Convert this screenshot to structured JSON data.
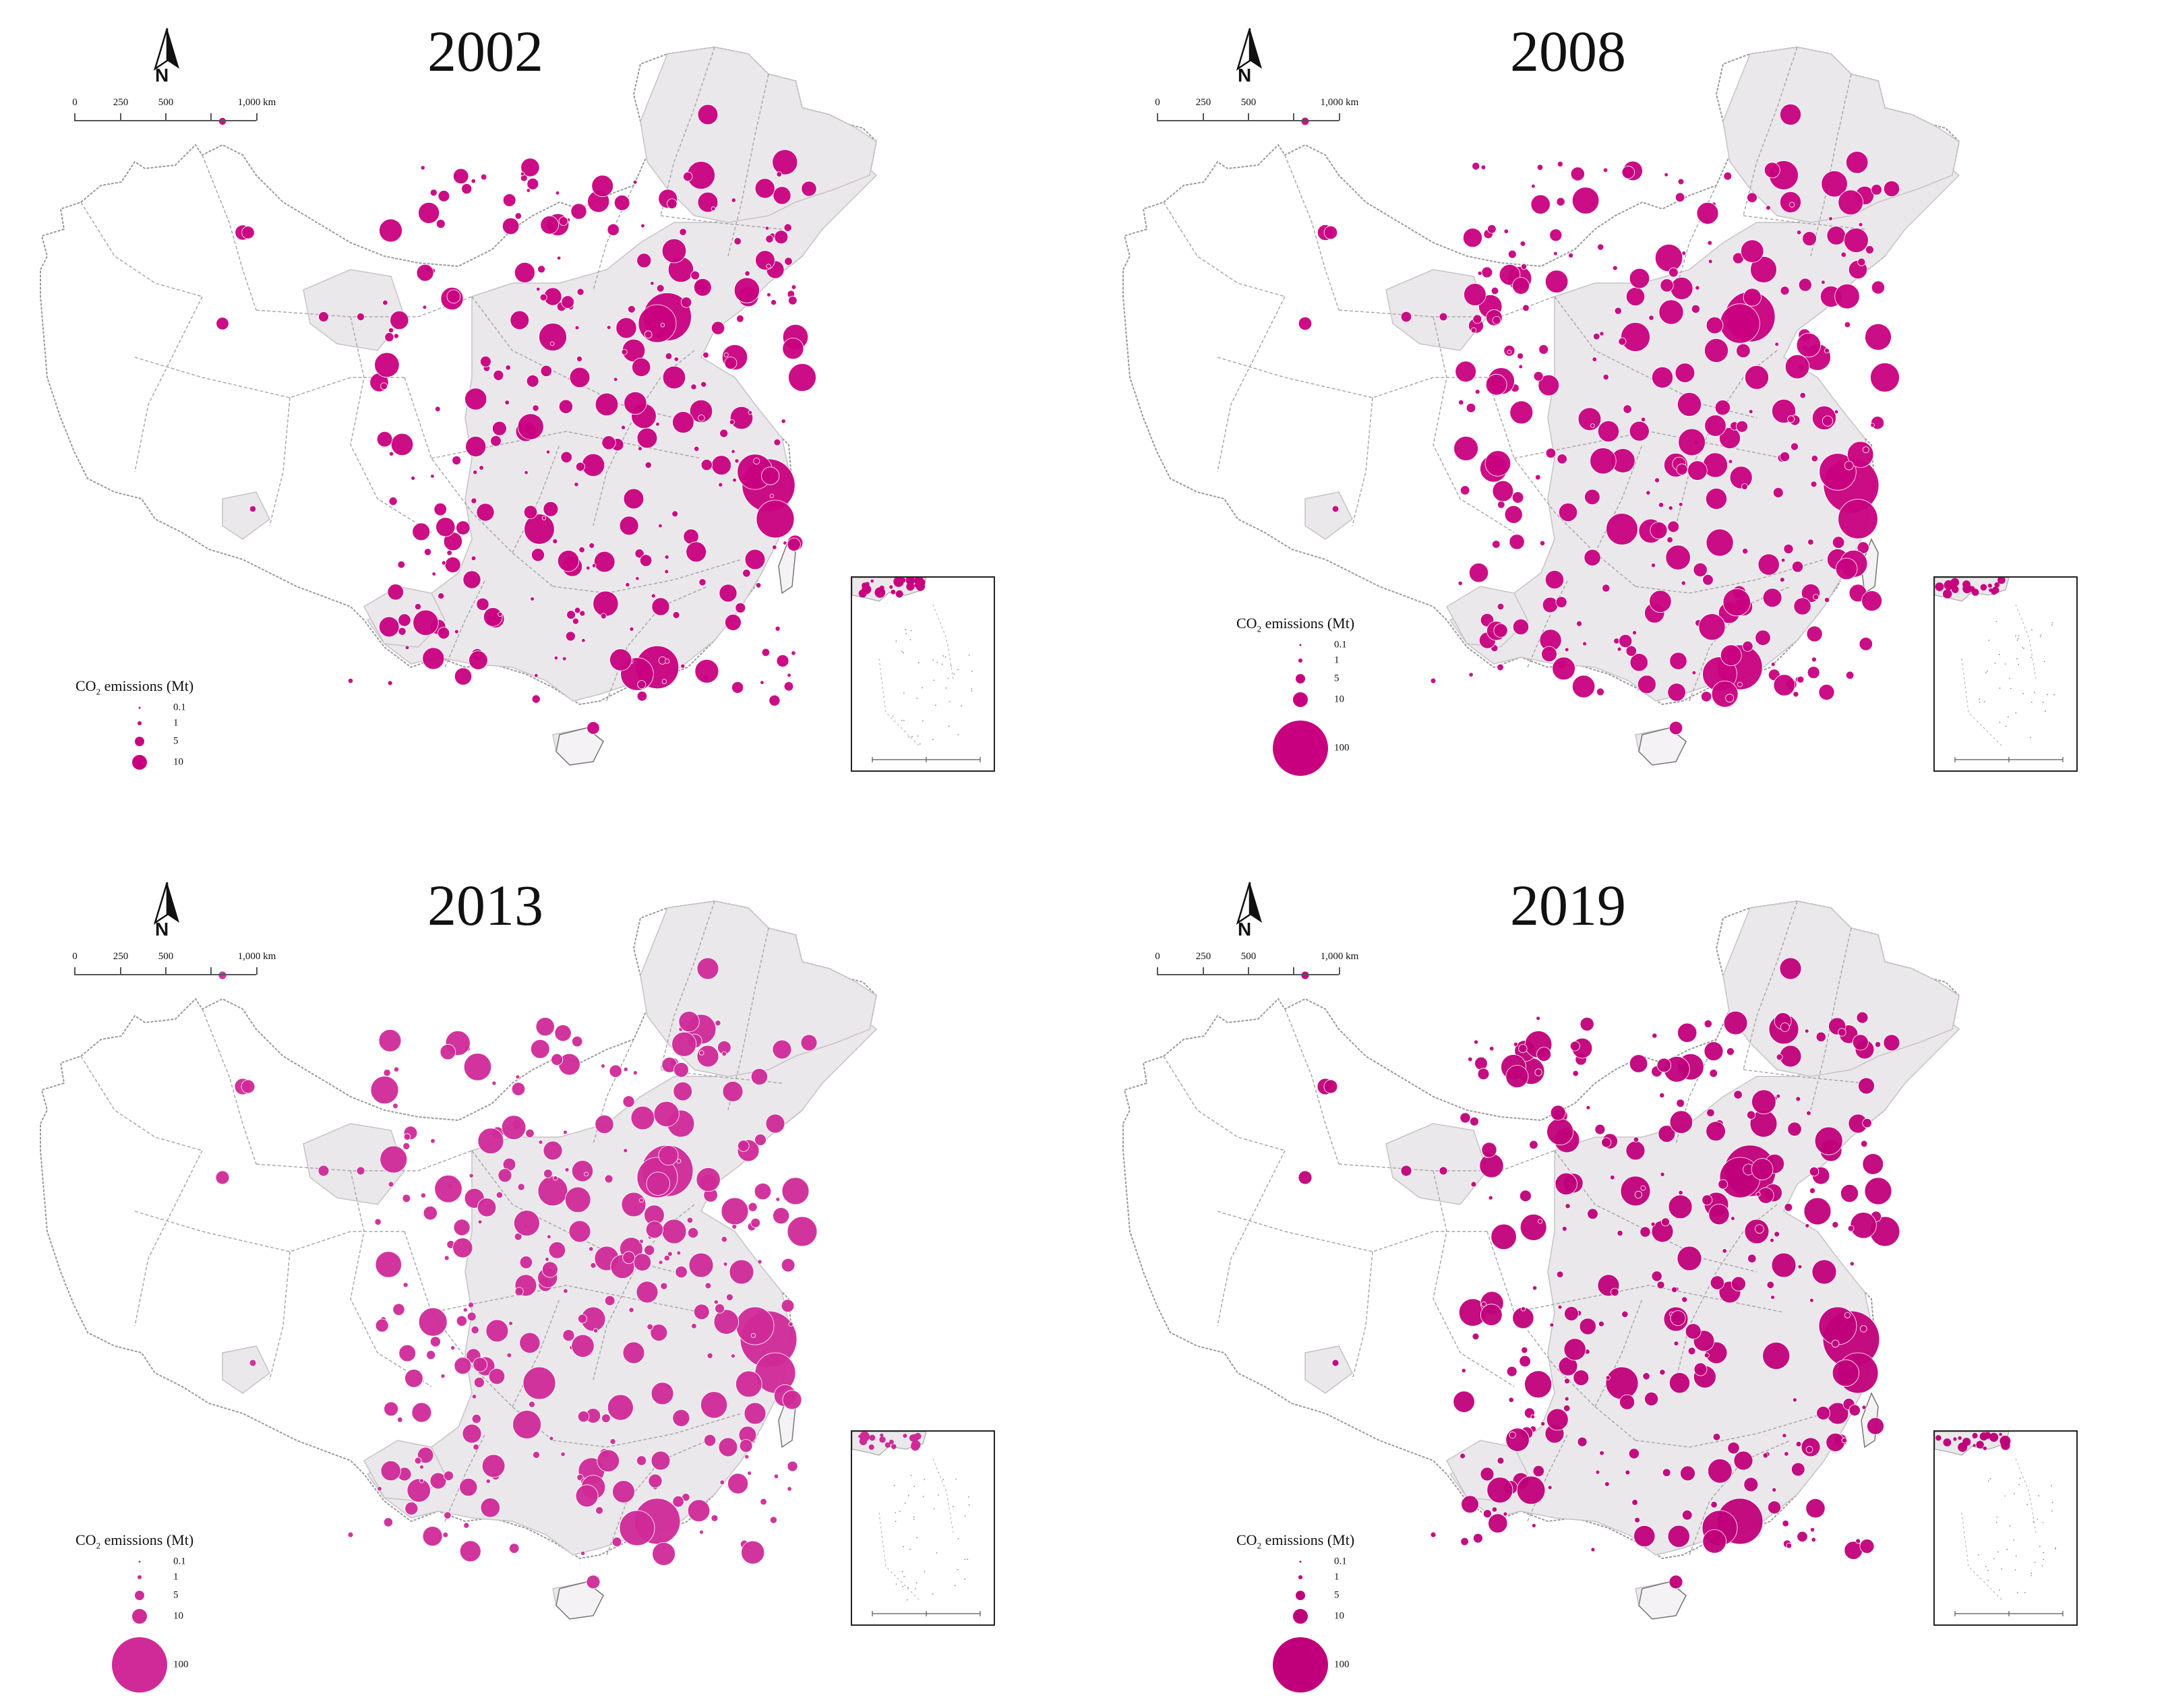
{
  "figure": {
    "panels": [
      {
        "year": "2002",
        "legend_values": [
          "0.1",
          "1",
          "5",
          "10"
        ],
        "intensity": 0.78,
        "fill_color": "#c8007f"
      },
      {
        "year": "2008",
        "legend_values": [
          "0.1",
          "1",
          "5",
          "10",
          "100"
        ],
        "intensity": 0.92,
        "fill_color": "#c8007f"
      },
      {
        "year": "2013",
        "legend_values": [
          "0.1",
          "1",
          "5",
          "10",
          "100"
        ],
        "intensity": 1.0,
        "fill_color": "#cf2a98"
      },
      {
        "year": "2019",
        "legend_values": [
          "0.1",
          "1",
          "5",
          "10",
          "100"
        ],
        "intensity": 1.0,
        "fill_color": "#c0007a"
      }
    ],
    "legend_title_prefix": "CO",
    "legend_title_sub": "2",
    "legend_title_suffix": " emissions (Mt)",
    "north_arrow_label": "N",
    "scale_bar": {
      "labels": [
        "0",
        "250",
        "500",
        "1,000 km"
      ]
    },
    "colors": {
      "bubble": "#c8007f",
      "land": "#ebe8eb",
      "border": "#9a9a9a"
    }
  }
}
